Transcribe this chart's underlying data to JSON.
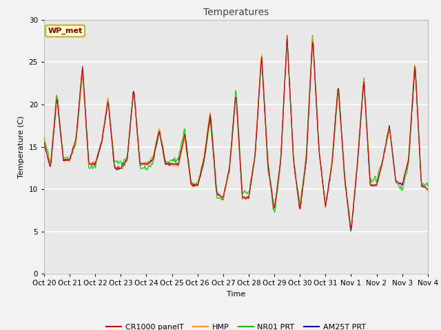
{
  "title": "Temperatures",
  "xlabel": "Time",
  "ylabel": "Temperature (C)",
  "ylim": [
    0,
    30
  ],
  "yticks": [
    0,
    5,
    10,
    15,
    20,
    25,
    30
  ],
  "bg_color": "#e8e8e8",
  "fig_color": "#f2f2f2",
  "annotation_text": "WP_met",
  "annotation_bg": "#ffffcc",
  "annotation_border": "#cc9900",
  "annotation_text_color": "#880000",
  "series_colors": {
    "CR1000 panelT": "#dd0000",
    "HMP": "#ff9900",
    "NR01 PRT": "#00cc00",
    "AM25T PRT": "#0000cc"
  },
  "x_tick_labels": [
    "Oct 20",
    "Oct 21",
    "Oct 22",
    "Oct 23",
    "Oct 24",
    "Oct 25",
    "Oct 26",
    "Oct 27",
    "Oct 28",
    "Oct 29",
    "Oct 30",
    "Oct 31",
    "Nov 1",
    "Nov 2",
    "Nov 3",
    "Nov 4"
  ],
  "ctrl_x": [
    0,
    0.25,
    0.5,
    0.75,
    1.0,
    1.25,
    1.5,
    1.75,
    2.0,
    2.25,
    2.5,
    2.75,
    3.0,
    3.25,
    3.5,
    3.75,
    4.0,
    4.25,
    4.5,
    4.75,
    5.0,
    5.25,
    5.5,
    5.75,
    6.0,
    6.25,
    6.5,
    6.75,
    7.0,
    7.25,
    7.5,
    7.75,
    8.0,
    8.25,
    8.5,
    8.75,
    9.0,
    9.25,
    9.5,
    9.75,
    10.0,
    10.25,
    10.5,
    10.75,
    11.0,
    11.25,
    11.5,
    11.75,
    12.0,
    12.25,
    12.5,
    12.75,
    13.0,
    13.25,
    13.5,
    13.75,
    14.0,
    14.25,
    14.5,
    14.75,
    15.0
  ],
  "ctrl_y": [
    15.5,
    12.5,
    21.0,
    13.5,
    13.5,
    16.0,
    24.5,
    13.0,
    13.0,
    15.5,
    20.5,
    12.5,
    12.5,
    13.5,
    22.0,
    13.0,
    13.0,
    13.5,
    17.0,
    13.0,
    13.0,
    13.0,
    16.5,
    10.5,
    10.5,
    13.5,
    19.0,
    9.5,
    9.0,
    12.5,
    21.5,
    9.0,
    9.0,
    14.0,
    26.0,
    13.0,
    7.5,
    13.5,
    28.0,
    13.5,
    7.5,
    13.5,
    28.0,
    14.5,
    8.0,
    13.0,
    22.5,
    11.5,
    5.0,
    13.0,
    23.0,
    10.5,
    10.5,
    13.5,
    17.5,
    11.0,
    10.5,
    13.5,
    25.0,
    10.5,
    10.0
  ],
  "num_points": 500
}
